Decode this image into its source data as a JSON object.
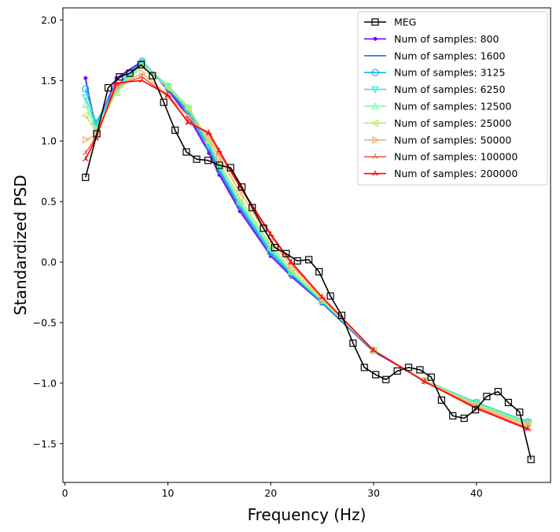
{
  "chart_data": {
    "type": "line",
    "xlabel": "Frequency (Hz)",
    "ylabel": "Standardized PSD",
    "xlim": [
      -0.2,
      47.2
    ],
    "ylim": [
      -1.82,
      2.1
    ],
    "xticks": [
      0,
      10,
      20,
      30,
      40
    ],
    "yticks": [
      -1.5,
      -1.0,
      -0.5,
      0.0,
      0.5,
      1.0,
      1.5,
      2.0
    ],
    "xtick_labels": [
      "0",
      "10",
      "20",
      "30",
      "40"
    ],
    "ytick_labels": [
      "−1.5",
      "−1.0",
      "−0.5",
      "0.0",
      "0.5",
      "1.0",
      "1.5",
      "2.0"
    ],
    "grid": false,
    "legend_position": "top-right",
    "series": [
      {
        "name": "MEG",
        "color": "#000000",
        "marker": "square-open",
        "x": [
          2,
          3.1,
          4.2,
          5.3,
          6.3,
          7.4,
          8.5,
          9.6,
          10.7,
          11.8,
          12.8,
          13.9,
          15,
          16.1,
          17.2,
          18.2,
          19.3,
          20.4,
          21.5,
          22.6,
          23.7,
          24.7,
          25.8,
          26.9,
          28,
          29.1,
          30.2,
          31.2,
          32.3,
          33.4,
          34.5,
          35.6,
          36.6,
          37.7,
          38.8,
          39.9,
          41,
          42.1,
          43.1,
          44.2,
          45.3
        ],
        "y": [
          0.7,
          1.06,
          1.44,
          1.53,
          1.56,
          1.63,
          1.54,
          1.32,
          1.09,
          0.91,
          0.85,
          0.84,
          0.8,
          0.78,
          0.62,
          0.45,
          0.28,
          0.12,
          0.07,
          0.01,
          0.02,
          -0.08,
          -0.28,
          -0.44,
          -0.67,
          -0.87,
          -0.93,
          -0.97,
          -0.9,
          -0.87,
          -0.89,
          -0.95,
          -1.14,
          -1.27,
          -1.29,
          -1.22,
          -1.11,
          -1.07,
          -1.16,
          -1.24,
          -1.63
        ]
      },
      {
        "name": "Num of samples: 800",
        "color": "#8000ff",
        "marker": "dot",
        "x": [
          2,
          3,
          5,
          7.5,
          10,
          12,
          14,
          15,
          17,
          20,
          22,
          25,
          30,
          35,
          40,
          45
        ],
        "y": [
          1.52,
          1.1,
          1.52,
          1.66,
          1.42,
          1.2,
          0.9,
          0.72,
          0.42,
          0.05,
          -0.12,
          -0.34,
          -0.74,
          -0.98,
          -1.16,
          -1.32
        ]
      },
      {
        "name": "Num of samples: 1600",
        "color": "#3a62f5",
        "marker": "none",
        "x": [
          2,
          3,
          5,
          7.5,
          10,
          12,
          14,
          15,
          17,
          20,
          22,
          25,
          30,
          35,
          40,
          45
        ],
        "y": [
          1.5,
          1.12,
          1.5,
          1.66,
          1.43,
          1.22,
          0.92,
          0.74,
          0.44,
          0.06,
          -0.11,
          -0.34,
          -0.74,
          -0.98,
          -1.16,
          -1.32
        ]
      },
      {
        "name": "Num of samples: 3125",
        "color": "#10b4e4",
        "marker": "circle-open",
        "x": [
          2,
          3,
          5,
          7.5,
          10,
          12,
          14,
          15,
          17,
          20,
          22,
          25,
          30,
          35,
          40,
          45
        ],
        "y": [
          1.43,
          1.15,
          1.45,
          1.66,
          1.44,
          1.24,
          0.95,
          0.76,
          0.46,
          0.08,
          -0.1,
          -0.33,
          -0.73,
          -0.98,
          -1.16,
          -1.32
        ]
      },
      {
        "name": "Num of samples: 6250",
        "color": "#3ee4d0",
        "marker": "triangle-down-open",
        "x": [
          2,
          3,
          5,
          7.5,
          10,
          12,
          14,
          15,
          17,
          20,
          22,
          25,
          30,
          35,
          40,
          45
        ],
        "y": [
          1.36,
          1.13,
          1.42,
          1.65,
          1.45,
          1.26,
          0.97,
          0.78,
          0.48,
          0.1,
          -0.09,
          -0.32,
          -0.73,
          -0.98,
          -1.16,
          -1.32
        ]
      },
      {
        "name": "Num of samples: 12500",
        "color": "#7ef8b0",
        "marker": "triangle-up-open",
        "x": [
          2,
          3,
          5,
          7.5,
          10,
          12,
          14,
          15,
          17,
          20,
          22,
          25,
          30,
          35,
          40,
          45
        ],
        "y": [
          1.3,
          1.1,
          1.4,
          1.64,
          1.46,
          1.28,
          1.0,
          0.8,
          0.5,
          0.12,
          -0.08,
          -0.32,
          -0.73,
          -0.98,
          -1.17,
          -1.33
        ]
      },
      {
        "name": "Num of samples: 25000",
        "color": "#bce86e",
        "marker": "triangle-left-open",
        "x": [
          2,
          3,
          5,
          7.5,
          10,
          12,
          14,
          15,
          17,
          20,
          22,
          25,
          30,
          35,
          40,
          45
        ],
        "y": [
          1.21,
          1.08,
          1.4,
          1.62,
          1.44,
          1.27,
          1.0,
          0.82,
          0.53,
          0.14,
          -0.06,
          -0.31,
          -0.73,
          -0.98,
          -1.18,
          -1.34
        ]
      },
      {
        "name": "Num of samples: 50000",
        "color": "#f6b070",
        "marker": "triangle-right-open",
        "x": [
          2,
          3,
          5,
          7.5,
          10,
          12,
          14,
          15,
          17,
          20,
          22,
          25,
          30,
          35,
          40,
          45
        ],
        "y": [
          1.01,
          1.05,
          1.45,
          1.56,
          1.38,
          1.2,
          1.03,
          0.86,
          0.58,
          0.18,
          -0.03,
          -0.3,
          -0.73,
          -0.98,
          -1.19,
          -1.35
        ]
      },
      {
        "name": "Num of samples: 100000",
        "color": "#f16040",
        "marker": "tri",
        "x": [
          2,
          3,
          5,
          7.5,
          10,
          12,
          14,
          15,
          17,
          20,
          22,
          25,
          30,
          35,
          40,
          45
        ],
        "y": [
          0.9,
          1.03,
          1.46,
          1.53,
          1.37,
          1.16,
          1.06,
          0.9,
          0.62,
          0.22,
          -0.01,
          -0.29,
          -0.73,
          -0.99,
          -1.2,
          -1.37
        ]
      },
      {
        "name": "Num of samples: 200000",
        "color": "#ff0000",
        "marker": "tri",
        "x": [
          2,
          3,
          5,
          7.5,
          10,
          12,
          14,
          15,
          17,
          20,
          22,
          25,
          30,
          35,
          40,
          45
        ],
        "y": [
          0.85,
          1.02,
          1.48,
          1.5,
          1.38,
          1.15,
          1.07,
          0.92,
          0.63,
          0.23,
          0.0,
          -0.29,
          -0.73,
          -0.99,
          -1.21,
          -1.38
        ]
      }
    ]
  }
}
